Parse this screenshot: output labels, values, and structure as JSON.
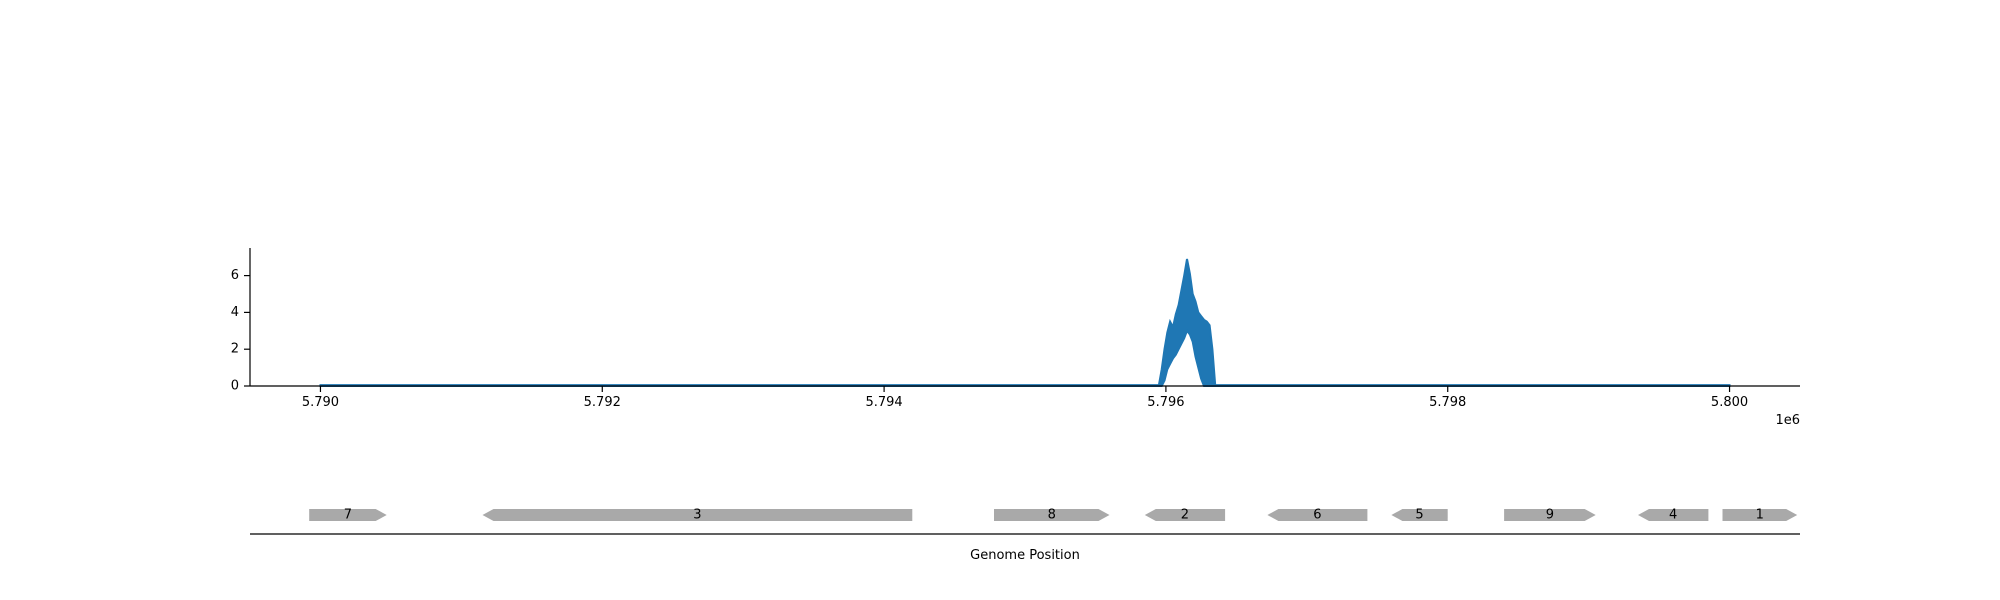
{
  "chart_data": [
    {
      "type": "area",
      "title": "",
      "xlabel": "",
      "ylabel": "",
      "xlim": [
        5789500,
        5800500
      ],
      "ylim": [
        0,
        7.5
      ],
      "x_offset_label": "1e6",
      "x_ticks": [
        5790000,
        5792000,
        5794000,
        5796000,
        5798000,
        5800000
      ],
      "x_tick_labels": [
        "5.790",
        "5.792",
        "5.794",
        "5.796",
        "5.798",
        "5.800"
      ],
      "y_ticks": [
        0,
        2,
        4,
        6
      ],
      "y_tick_labels": [
        "0",
        "2",
        "4",
        "6"
      ],
      "grid": false,
      "color": "#1f77b4",
      "series": [
        {
          "x": [
            5790000,
            5795950,
            5795970,
            5795990,
            5796010,
            5796030,
            5796050,
            5796070,
            5796090,
            5796110,
            5796130,
            5796150,
            5796170,
            5796190,
            5796210,
            5796230,
            5796250,
            5796270,
            5796290,
            5796310,
            5796330,
            5796350,
            5800000
          ],
          "upper": [
            0.05,
            0.05,
            0.9,
            2.0,
            2.9,
            3.5,
            3.2,
            3.9,
            4.4,
            5.2,
            6.0,
            6.9,
            6.1,
            5.0,
            4.6,
            4.0,
            3.8,
            3.6,
            3.5,
            3.3,
            2.0,
            0.05,
            0.05
          ],
          "lower": [
            0,
            0,
            0,
            0.3,
            0.9,
            1.2,
            1.5,
            1.7,
            2.0,
            2.3,
            2.6,
            3.0,
            2.8,
            2.4,
            1.6,
            1.0,
            0.4,
            0,
            0,
            0,
            0,
            0,
            0
          ]
        }
      ]
    },
    {
      "type": "gene-track",
      "xlabel": "Genome Position",
      "xlim": [
        5789500,
        5800500
      ],
      "color": "#a9a9a9",
      "genes": [
        {
          "label": "7",
          "start": 5789920,
          "end": 5790470,
          "strand": "+"
        },
        {
          "label": "3",
          "start": 5791150,
          "end": 5794200,
          "strand": "-"
        },
        {
          "label": "8",
          "start": 5794780,
          "end": 5795600,
          "strand": "+"
        },
        {
          "label": "2",
          "start": 5795850,
          "end": 5796420,
          "strand": "-"
        },
        {
          "label": "6",
          "start": 5796720,
          "end": 5797430,
          "strand": "-"
        },
        {
          "label": "5",
          "start": 5797600,
          "end": 5798000,
          "strand": "-"
        },
        {
          "label": "9",
          "start": 5798400,
          "end": 5799050,
          "strand": "+"
        },
        {
          "label": "4",
          "start": 5799350,
          "end": 5799850,
          "strand": "-"
        },
        {
          "label": "1",
          "start": 5799950,
          "end": 5800480,
          "strand": "+"
        }
      ]
    }
  ]
}
